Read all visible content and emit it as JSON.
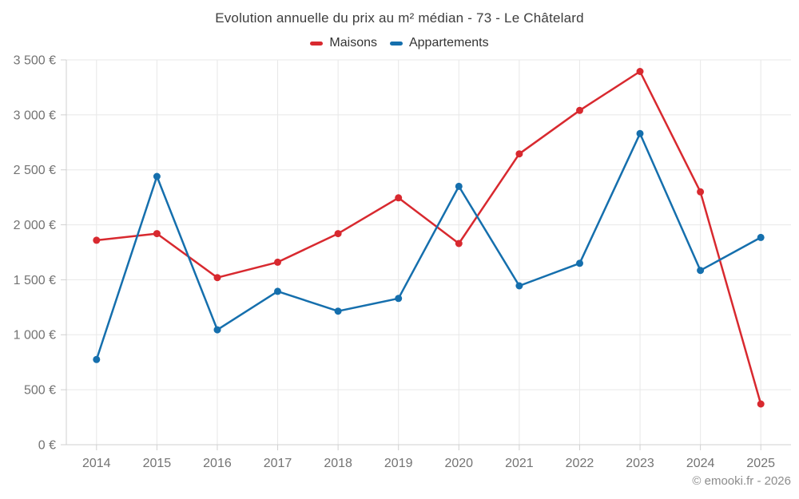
{
  "page": {
    "footer": "© emooki.fr - 2026"
  },
  "chart_data": {
    "type": "line",
    "title": "Evolution annuelle du prix au m² médian - 73 - Le Châtelard",
    "categories": [
      "2014",
      "2015",
      "2016",
      "2017",
      "2018",
      "2019",
      "2020",
      "2021",
      "2022",
      "2023",
      "2024",
      "2025"
    ],
    "series": [
      {
        "name": "Maisons",
        "color": "#d8292f",
        "values": [
          1860,
          1920,
          1520,
          1660,
          1920,
          2245,
          1830,
          2645,
          3040,
          3395,
          2300,
          370
        ]
      },
      {
        "name": "Appartements",
        "color": "#156fad",
        "values": [
          775,
          2440,
          1045,
          1395,
          1215,
          1330,
          2350,
          1445,
          1650,
          2830,
          1585,
          1885
        ]
      }
    ],
    "xlabel": "",
    "ylabel": "",
    "ylim": [
      0,
      3500
    ],
    "ytick_step": 500,
    "ytick_labels": [
      "0 €",
      "500 €",
      "1 000 €",
      "1 500 €",
      "2 000 €",
      "2 500 €",
      "3 000 €",
      "3 500 €"
    ],
    "grid": true,
    "legend_position": "top",
    "grid_color": "#e8e8e8",
    "axis_color": "#d0d0d0",
    "tick_text_color": "#737373"
  }
}
